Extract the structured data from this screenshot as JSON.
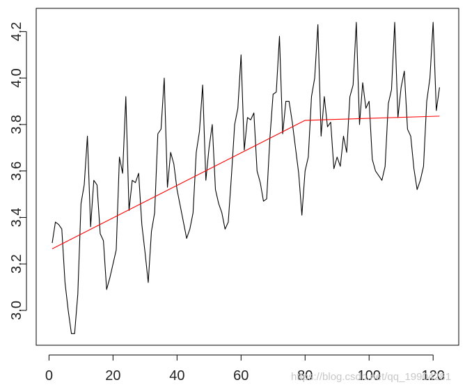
{
  "chart_data": {
    "type": "line",
    "title": "",
    "xlabel": "",
    "ylabel": "",
    "xlim": [
      -4,
      128
    ],
    "ylim": [
      2.85,
      4.3
    ],
    "x_ticks": [
      0,
      20,
      40,
      60,
      80,
      100,
      120
    ],
    "y_ticks": [
      3.0,
      3.2,
      3.4,
      3.6,
      3.8,
      4.0,
      4.2
    ],
    "x_tick_labels": [
      "0",
      "20",
      "40",
      "60",
      "80",
      "100",
      "120"
    ],
    "y_tick_labels": [
      "3.0",
      "3.2",
      "3.4",
      "3.6",
      "3.8",
      "4.0",
      "4.2"
    ],
    "grid": false,
    "legend": "none",
    "series": [
      {
        "color": "#000000",
        "x": [
          1,
          2,
          3,
          4,
          5,
          6,
          7,
          8,
          9,
          10,
          11,
          12,
          13,
          14,
          15,
          16,
          17,
          18,
          19,
          20,
          21,
          22,
          23,
          24,
          25,
          26,
          27,
          28,
          29,
          30,
          31,
          32,
          33,
          34,
          35,
          36,
          37,
          38,
          39,
          40,
          41,
          42,
          43,
          44,
          45,
          46,
          47,
          48,
          49,
          50,
          51,
          52,
          53,
          54,
          55,
          56,
          57,
          58,
          59,
          60,
          61,
          62,
          63,
          64,
          65,
          66,
          67,
          68,
          69,
          70,
          71,
          72,
          73,
          74,
          75,
          76,
          77,
          78,
          79,
          80,
          81,
          82,
          83,
          84,
          85,
          86,
          87,
          88,
          89,
          90,
          91,
          92,
          93,
          94,
          95,
          96,
          97,
          98,
          99,
          100,
          101,
          102,
          103,
          104,
          105,
          106,
          107,
          108,
          109,
          110,
          111,
          112,
          113,
          114,
          115,
          116,
          117,
          118,
          119,
          120,
          121,
          122
        ],
        "y": [
          3.29,
          3.38,
          3.37,
          3.35,
          3.12,
          3.0,
          2.9,
          2.9,
          3.07,
          3.46,
          3.54,
          3.75,
          3.36,
          3.56,
          3.54,
          3.33,
          3.3,
          3.09,
          3.14,
          3.2,
          3.26,
          3.66,
          3.59,
          3.92,
          3.43,
          3.56,
          3.55,
          3.59,
          3.37,
          3.25,
          3.12,
          3.34,
          3.42,
          3.76,
          3.78,
          4.0,
          3.53,
          3.68,
          3.63,
          3.52,
          3.45,
          3.38,
          3.31,
          3.35,
          3.42,
          3.68,
          3.77,
          3.97,
          3.56,
          3.7,
          3.8,
          3.52,
          3.46,
          3.42,
          3.35,
          3.38,
          3.58,
          3.8,
          3.87,
          4.1,
          3.69,
          3.83,
          3.82,
          3.85,
          3.6,
          3.55,
          3.47,
          3.48,
          3.74,
          3.93,
          3.94,
          4.18,
          3.76,
          3.9,
          3.9,
          3.81,
          3.7,
          3.59,
          3.41,
          3.6,
          3.66,
          3.92,
          4.0,
          4.23,
          3.75,
          3.92,
          3.79,
          3.81,
          3.61,
          3.66,
          3.62,
          3.75,
          3.68,
          3.92,
          3.97,
          4.24,
          3.8,
          3.98,
          3.87,
          3.9,
          3.65,
          3.6,
          3.58,
          3.56,
          3.62,
          3.89,
          3.95,
          4.24,
          3.83,
          3.96,
          4.03,
          3.78,
          3.75,
          3.61,
          3.52,
          3.56,
          3.62,
          3.9,
          4.0,
          4.24,
          3.86,
          3.96
        ]
      },
      {
        "color": "#ff0000",
        "x": [
          1,
          80,
          122
        ],
        "y": [
          3.265,
          3.818,
          3.836
        ]
      }
    ]
  },
  "watermark": {
    "text": "https://blog.csdn.net/qq_19904281"
  }
}
